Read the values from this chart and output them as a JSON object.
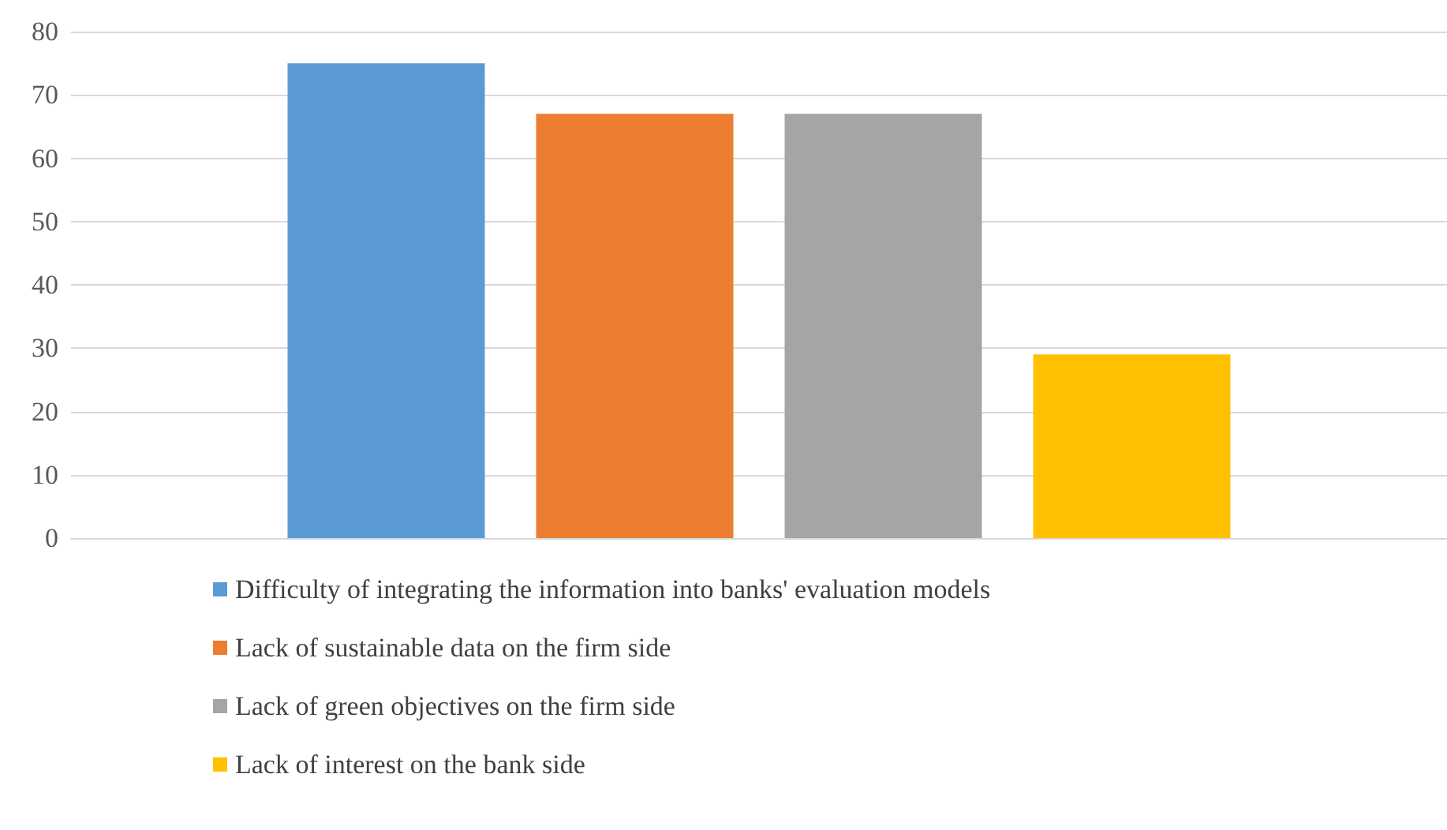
{
  "chart_data": {
    "type": "bar",
    "categories": [
      null
    ],
    "series": [
      {
        "name": "Difficulty of integrating the information into banks' evaluation models",
        "color": "#5b9bd5",
        "values": [
          75
        ]
      },
      {
        "name": "Lack of sustainable data on the firm side",
        "color": "#ed7d31",
        "values": [
          67
        ]
      },
      {
        "name": "Lack of green objectives on the firm side",
        "color": "#a5a5a5",
        "values": [
          67
        ]
      },
      {
        "name": "Lack of interest on the bank side",
        "color": "#ffc000",
        "values": [
          29
        ]
      }
    ],
    "ylim": [
      0,
      80
    ],
    "yticks": [
      0,
      10,
      20,
      30,
      40,
      50,
      60,
      70,
      80
    ],
    "grid": "y",
    "legend": "bottom"
  }
}
